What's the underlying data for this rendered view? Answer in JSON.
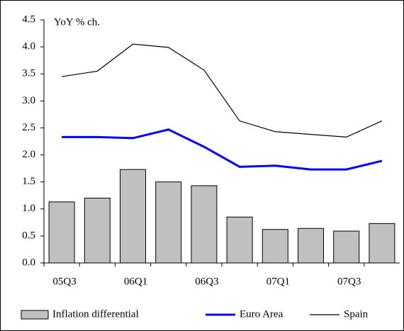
{
  "chart_data": {
    "type": "bar_line",
    "annotation": "YoY % ch.",
    "categories": [
      "05Q3",
      null,
      "06Q1",
      null,
      "06Q3",
      null,
      "07Q1",
      null,
      "07Q3",
      null
    ],
    "series": [
      {
        "name": "Inflation differential",
        "type": "bar",
        "color": "#c0c0c0",
        "values": [
          1.13,
          1.2,
          1.73,
          1.5,
          1.43,
          0.85,
          0.62,
          0.64,
          0.59,
          0.73
        ]
      },
      {
        "name": "Euro Area",
        "type": "line",
        "color": "#0000ff",
        "values": [
          2.33,
          2.33,
          2.31,
          2.47,
          2.15,
          1.78,
          1.8,
          1.73,
          1.73,
          1.89
        ]
      },
      {
        "name": "Spain",
        "type": "line",
        "color": "#000000",
        "values": [
          3.45,
          3.55,
          4.05,
          3.99,
          3.57,
          2.63,
          2.43,
          2.38,
          2.33,
          2.63
        ]
      }
    ],
    "ylim": [
      0,
      4.5
    ],
    "yticks": [
      {
        "value": 0,
        "label": "0.0"
      },
      0.5,
      {
        "value": 1,
        "label": "1.0"
      },
      1.5,
      {
        "value": 2,
        "label": "2.0"
      },
      2.5,
      {
        "value": 3,
        "label": "3.0"
      },
      3.5,
      {
        "value": 4,
        "label": "4.0"
      },
      4.5
    ],
    "legend": "bottom"
  }
}
